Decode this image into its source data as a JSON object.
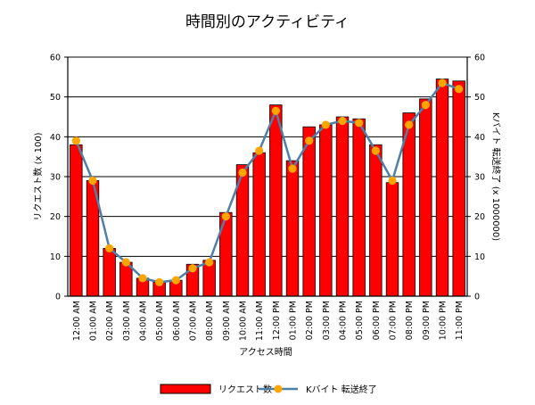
{
  "chart_data": {
    "type": "bar",
    "title": "時間別のアクティビティ",
    "xlabel": "アクセス時間",
    "ylabel_left": "リクエスト数 (x 100)",
    "ylabel_right": "Kバイト 転送終了 (x 1000000)",
    "ylim": [
      0,
      60
    ],
    "y2lim": [
      0,
      60
    ],
    "yticks": [
      "0",
      "10",
      "20",
      "30",
      "40",
      "50",
      "60"
    ],
    "grid": true,
    "legend_position": "bottom",
    "categories": [
      "12:00 AM",
      "01:00 AM",
      "02:00 AM",
      "03:00 AM",
      "04:00 AM",
      "05:00 AM",
      "06:00 AM",
      "07:00 AM",
      "08:00 AM",
      "09:00 AM",
      "10:00 AM",
      "11:00 AM",
      "12:00 PM",
      "01:00 PM",
      "02:00 PM",
      "03:00 PM",
      "04:00 PM",
      "05:00 PM",
      "06:00 PM",
      "07:00 PM",
      "08:00 PM",
      "09:00 PM",
      "10:00 PM",
      "11:00 PM"
    ],
    "series": [
      {
        "name": "リクエスト数",
        "kind": "bar",
        "axis": "left",
        "color": "#ff0000",
        "values": [
          38,
          29,
          12,
          8.5,
          4.5,
          3.5,
          4,
          8,
          9,
          21,
          33,
          36,
          48,
          34,
          42.5,
          43,
          45,
          44.5,
          38,
          28.5,
          46,
          49.5,
          54.5,
          54
        ]
      },
      {
        "name": "Kバイト 転送終了",
        "kind": "line",
        "axis": "right",
        "color": "#4f7fa6",
        "marker_color": "#ffa500",
        "values": [
          39,
          29,
          12,
          8.5,
          4.5,
          3.5,
          4,
          7,
          8.5,
          20,
          31,
          36.5,
          46.5,
          32,
          39,
          43,
          44,
          43.5,
          36.5,
          29,
          43,
          48,
          53.5,
          52
        ]
      }
    ]
  }
}
